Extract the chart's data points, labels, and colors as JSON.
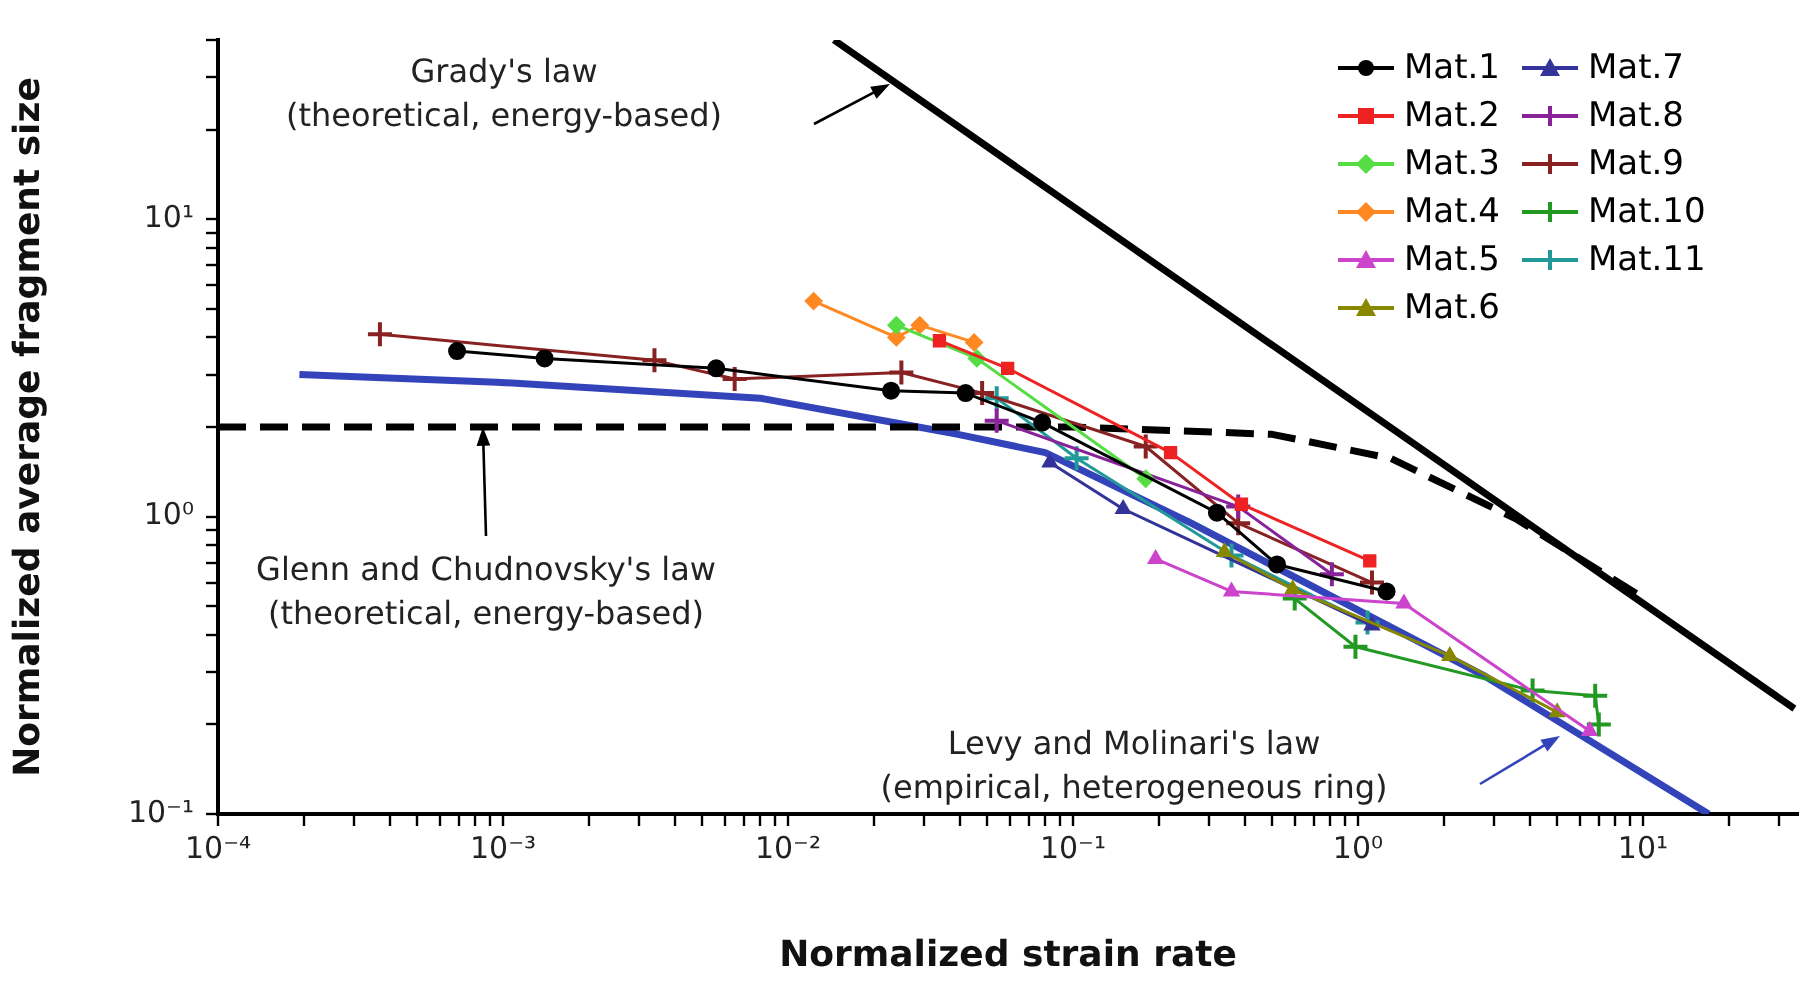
{
  "chart_data": {
    "type": "line",
    "xlabel": "Normalized strain rate",
    "ylabel": "Normalized average fragment size",
    "log": "xy",
    "grid": false,
    "legend": "top right",
    "xlim": [
      0.0001,
      35
    ],
    "ylim": [
      0.1,
      40
    ],
    "xticks": [
      {
        "value": 0.0001,
        "label": "10⁻⁴"
      },
      {
        "value": 0.0002,
        "label": null
      },
      {
        "value": 0.0003,
        "label": null
      },
      {
        "value": 0.0004,
        "label": null
      },
      {
        "value": 0.0005,
        "label": null
      },
      {
        "value": 0.0006,
        "label": null
      },
      {
        "value": 0.0007,
        "label": null
      },
      {
        "value": 0.0008,
        "label": null
      },
      {
        "value": 0.0009,
        "label": null
      },
      {
        "value": 0.001,
        "label": "10⁻³"
      },
      {
        "value": 0.002,
        "label": null
      },
      {
        "value": 0.003,
        "label": null
      },
      {
        "value": 0.004,
        "label": null
      },
      {
        "value": 0.005,
        "label": null
      },
      {
        "value": 0.006,
        "label": null
      },
      {
        "value": 0.007,
        "label": null
      },
      {
        "value": 0.008,
        "label": null
      },
      {
        "value": 0.009,
        "label": null
      },
      {
        "value": 0.01,
        "label": "10⁻²"
      },
      {
        "value": 0.02,
        "label": null
      },
      {
        "value": 0.03,
        "label": null
      },
      {
        "value": 0.04,
        "label": null
      },
      {
        "value": 0.05,
        "label": null
      },
      {
        "value": 0.06,
        "label": null
      },
      {
        "value": 0.07,
        "label": null
      },
      {
        "value": 0.08,
        "label": null
      },
      {
        "value": 0.09,
        "label": null
      },
      {
        "value": 0.1,
        "label": "10⁻¹"
      },
      {
        "value": 0.2,
        "label": null
      },
      {
        "value": 0.3,
        "label": null
      },
      {
        "value": 0.4,
        "label": null
      },
      {
        "value": 0.5,
        "label": null
      },
      {
        "value": 0.6,
        "label": null
      },
      {
        "value": 0.7,
        "label": null
      },
      {
        "value": 0.8,
        "label": null
      },
      {
        "value": 0.9,
        "label": null
      },
      {
        "value": 1,
        "label": "10⁰"
      },
      {
        "value": 2,
        "label": null
      },
      {
        "value": 3,
        "label": null
      },
      {
        "value": 4,
        "label": null
      },
      {
        "value": 5,
        "label": null
      },
      {
        "value": 6,
        "label": null
      },
      {
        "value": 7,
        "label": null
      },
      {
        "value": 8,
        "label": null
      },
      {
        "value": 9,
        "label": null
      },
      {
        "value": 10,
        "label": "10¹"
      },
      {
        "value": 20,
        "label": null
      },
      {
        "value": 30,
        "label": null
      }
    ],
    "yticks": [
      {
        "value": 0.1,
        "label": "10⁻¹"
      },
      {
        "value": 0.2,
        "label": null
      },
      {
        "value": 0.3,
        "label": null
      },
      {
        "value": 0.4,
        "label": null
      },
      {
        "value": 0.5,
        "label": null
      },
      {
        "value": 0.6,
        "label": null
      },
      {
        "value": 0.7,
        "label": null
      },
      {
        "value": 0.8,
        "label": null
      },
      {
        "value": 0.9,
        "label": null
      },
      {
        "value": 1,
        "label": "10⁰"
      },
      {
        "value": 2,
        "label": null
      },
      {
        "value": 3,
        "label": null
      },
      {
        "value": 4,
        "label": null
      },
      {
        "value": 5,
        "label": null
      },
      {
        "value": 6,
        "label": null
      },
      {
        "value": 7,
        "label": null
      },
      {
        "value": 8,
        "label": null
      },
      {
        "value": 9,
        "label": null
      },
      {
        "value": 10,
        "label": "10¹"
      },
      {
        "value": 20,
        "label": null
      },
      {
        "value": 30,
        "label": null
      },
      {
        "value": 40,
        "label": null
      }
    ],
    "annotations": [
      "Grady's law\n(theoretical, energy-based)",
      {
        "text": "Glenn and Chudnovsky's law\n(theoretical, energy-based)",
        "x": 0.00085,
        "y": 2.0
      },
      "Levy and Molinari's law\n(empirical, heterogeneous ring)"
    ],
    "series": [
      {
        "name": "Mat.1",
        "color": "#000000",
        "marker": "circle",
        "x": [
          0.00069,
          0.0014,
          0.0056,
          0.023,
          0.042,
          0.078,
          0.32,
          0.52,
          1.26
        ],
        "values": [
          3.6,
          3.4,
          3.15,
          2.65,
          2.6,
          2.07,
          1.03,
          0.69,
          0.56
        ]
      },
      {
        "name": "Mat.2",
        "color": "#ee2222",
        "marker": "square",
        "x": [
          0.034,
          0.059,
          0.22,
          0.39,
          1.1
        ],
        "values": [
          3.9,
          3.15,
          1.64,
          1.1,
          0.71
        ]
      },
      {
        "name": "Mat.3",
        "color": "#55dd44",
        "marker": "diamond",
        "x": [
          0.024,
          0.046,
          0.18
        ],
        "values": [
          4.4,
          3.4,
          1.34
        ]
      },
      {
        "name": "Mat.4",
        "color": "#ff8822",
        "marker": "diamond",
        "x": [
          0.0123,
          0.024,
          0.029,
          0.045
        ],
        "values": [
          5.3,
          4.0,
          4.4,
          3.85
        ]
      },
      {
        "name": "Mat.5",
        "color": "#cc44cc",
        "marker": "triangle",
        "x": [
          0.195,
          0.36,
          1.45,
          6.5
        ],
        "values": [
          0.72,
          0.56,
          0.51,
          0.19
        ]
      },
      {
        "name": "Mat.6",
        "color": "#888800",
        "marker": "triangle",
        "x": [
          0.34,
          0.59,
          2.1,
          5.0
        ],
        "values": [
          0.76,
          0.57,
          0.34,
          0.22
        ]
      },
      {
        "name": "Mat.7",
        "color": "#333399",
        "marker": "triangle",
        "x": [
          0.083,
          0.15,
          1.12
        ],
        "values": [
          1.52,
          1.06,
          0.43
        ]
      },
      {
        "name": "Mat.8",
        "color": "#882299",
        "marker": "cross",
        "x": [
          0.054,
          0.38,
          0.81
        ],
        "values": [
          2.1,
          1.08,
          0.64
        ]
      },
      {
        "name": "Mat.9",
        "color": "#882222",
        "marker": "cross",
        "x": [
          0.00037,
          0.0034,
          0.0065,
          0.025,
          0.048,
          0.18,
          0.38,
          1.12
        ],
        "values": [
          4.1,
          3.35,
          2.9,
          3.05,
          2.6,
          1.72,
          0.95,
          0.6
        ]
      },
      {
        "name": "Mat.10",
        "color": "#229922",
        "marker": "cross",
        "x": [
          0.6,
          0.98,
          4.1,
          6.8,
          7.0
        ],
        "values": [
          0.53,
          0.365,
          0.26,
          0.25,
          0.2
        ]
      },
      {
        "name": "Mat.11",
        "color": "#229999",
        "marker": "cross",
        "x": [
          0.054,
          0.103,
          0.36,
          1.08
        ],
        "values": [
          2.5,
          1.57,
          0.74,
          0.44
        ]
      },
      {
        "color": "#000000",
        "marker": "none",
        "line_style": "solid",
        "x": [
          0.0145,
          34
        ],
        "values": [
          40,
          0.226
        ]
      },
      {
        "color": "#000000",
        "marker": "none",
        "line_style": "dashed",
        "x": [
          0.0001,
          0.1,
          0.5,
          1.3,
          3.6,
          9.5
        ],
        "values": [
          2.0,
          2.0,
          1.89,
          1.57,
          0.98,
          0.55
        ]
      },
      {
        "color": "#3344bb",
        "marker": "none",
        "line_style": "solid",
        "x": [
          0.000193,
          0.00095,
          0.008,
          0.0395,
          0.08,
          0.26,
          2.8,
          17
        ],
        "values": [
          3.0,
          2.83,
          2.5,
          1.89,
          1.64,
          0.95,
          0.29,
          0.1
        ]
      }
    ]
  }
}
